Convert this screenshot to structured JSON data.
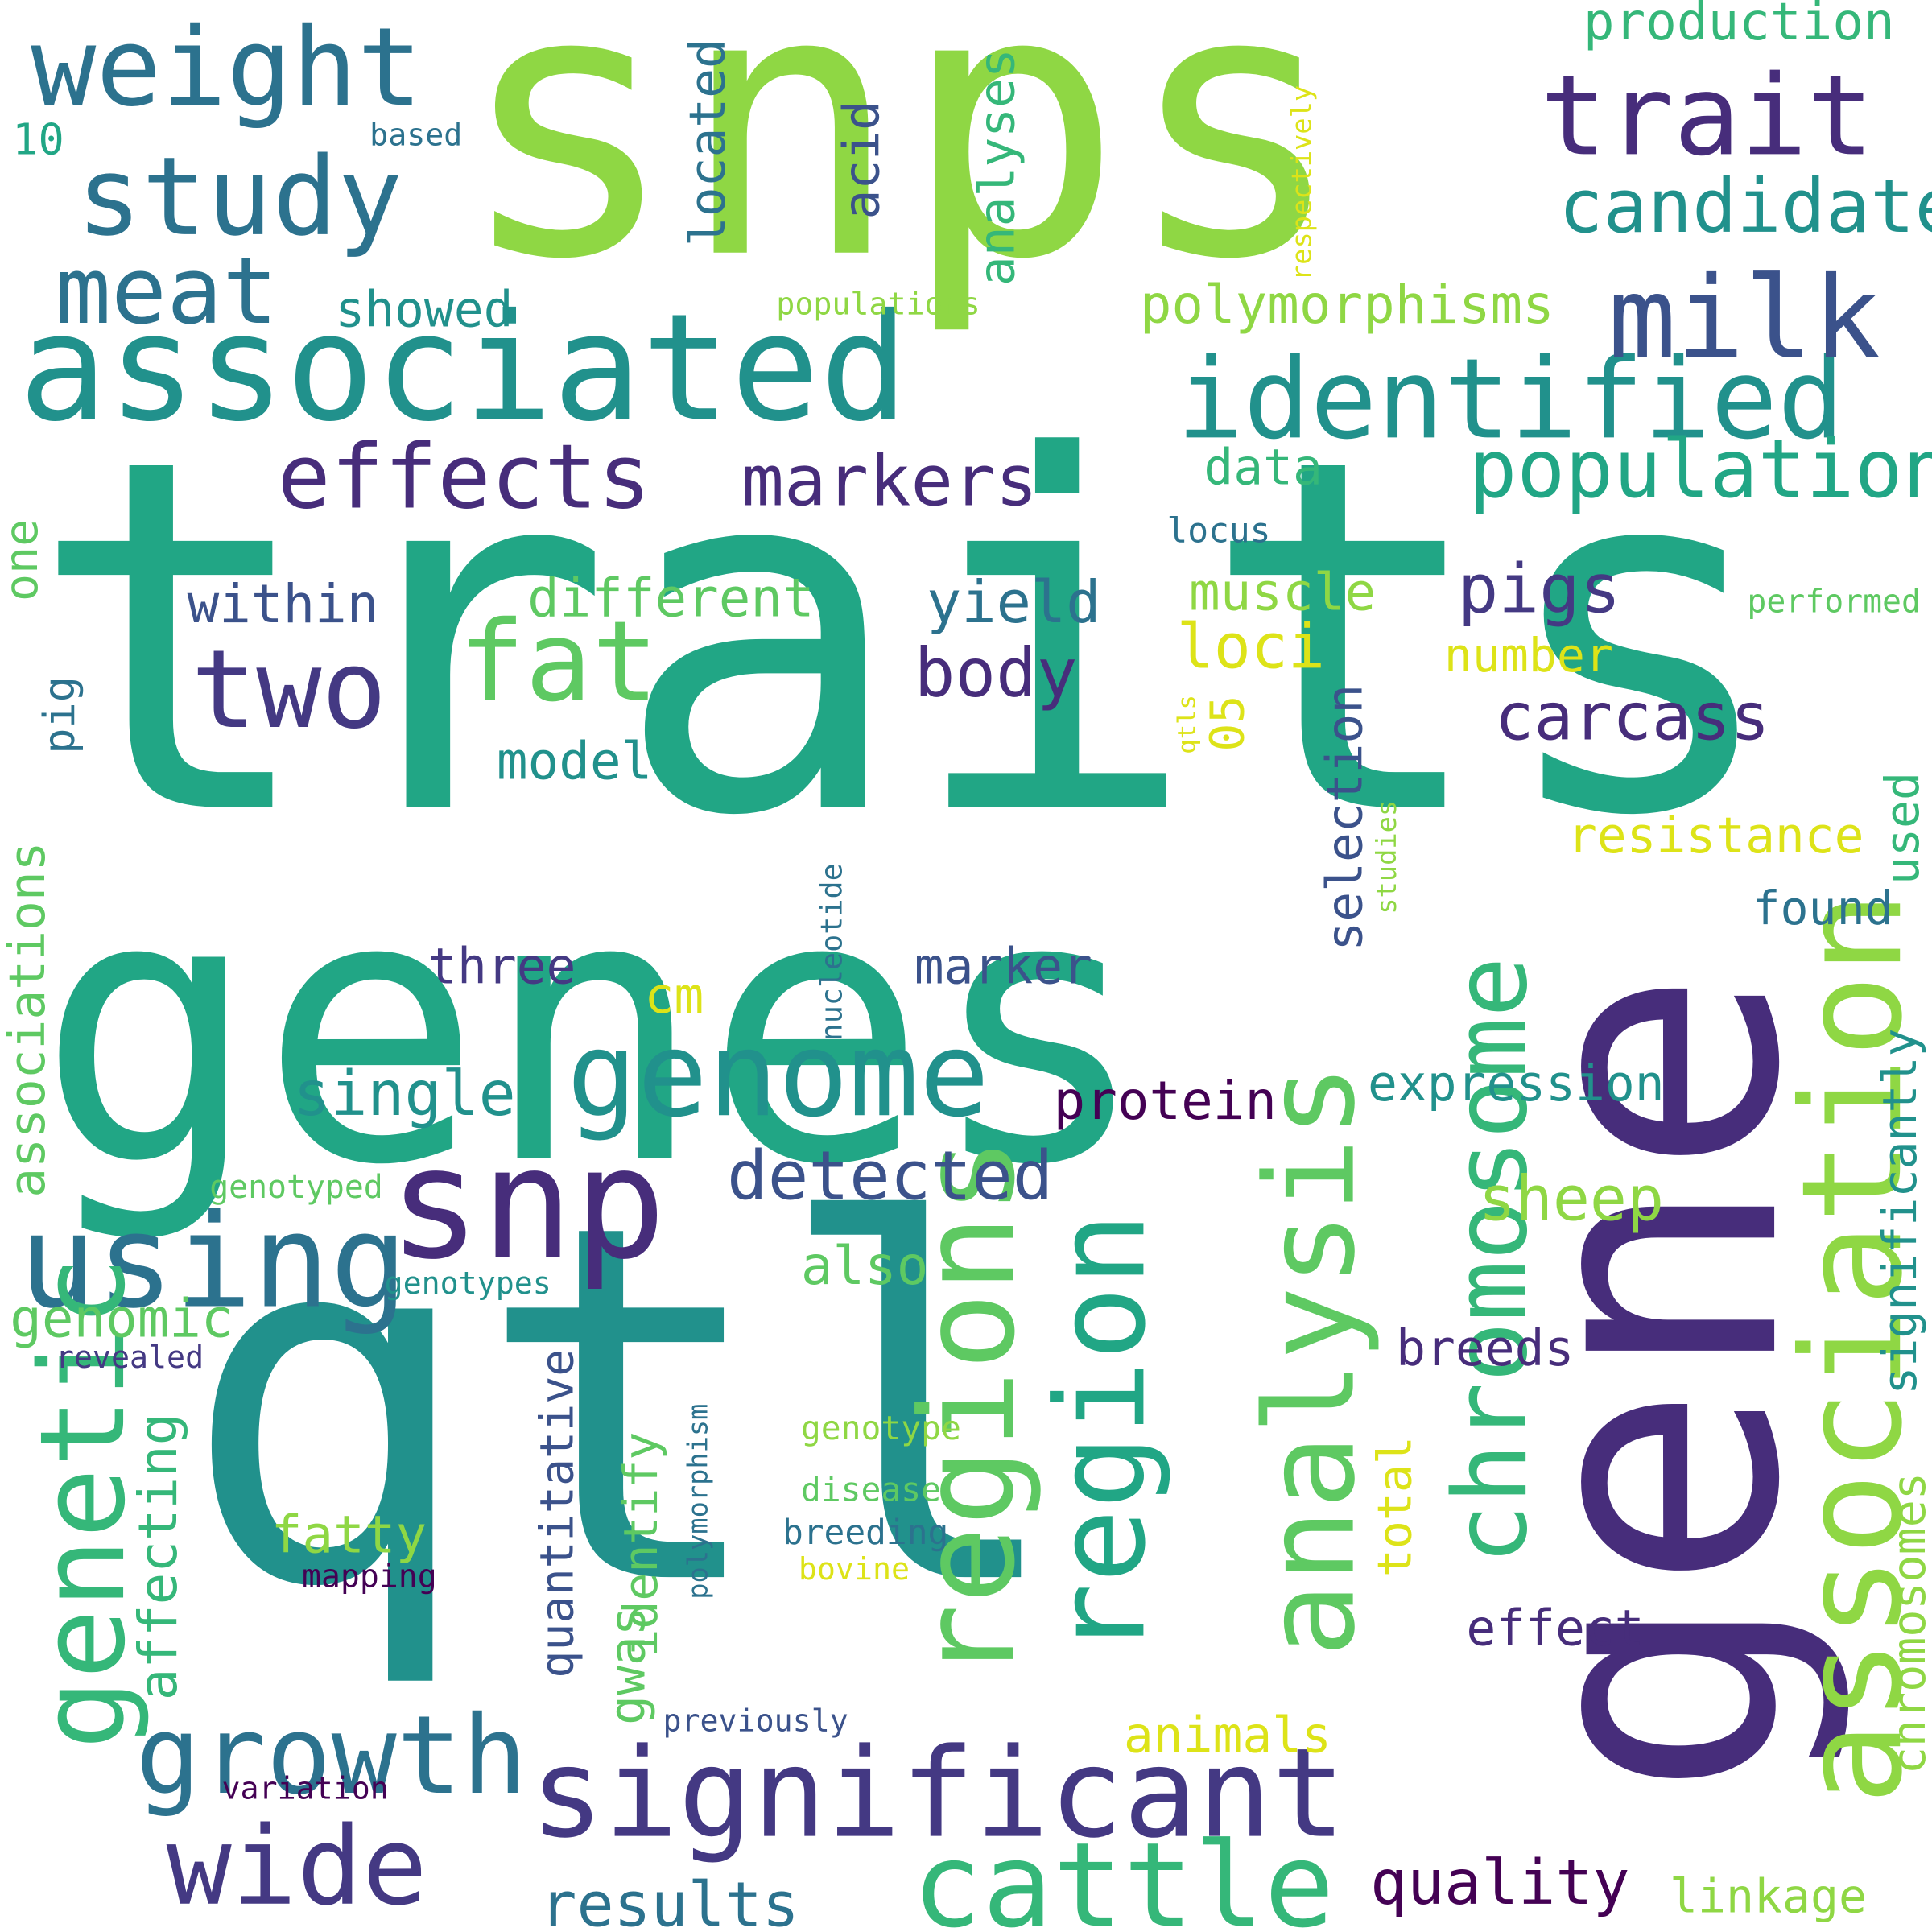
{
  "colors": {
    "background": "#ffffff",
    "yellow": "#dde318",
    "lime": "#8fd744",
    "green": "#5ec962",
    "mint": "#35b779",
    "teal": "#21a685",
    "cyan": "#21918c",
    "steel": "#2c728e",
    "blue": "#3b528b",
    "indigo": "#443983",
    "purple": "#472d7b",
    "deep": "#440154"
  },
  "words": [
    {
      "text": "traits",
      "color": "teal"
    },
    {
      "text": "qtl",
      "color": "cyan"
    },
    {
      "text": "snps",
      "color": "lime"
    },
    {
      "text": "genes",
      "color": "teal"
    },
    {
      "text": "gene",
      "color": "purple"
    },
    {
      "text": "associated",
      "color": "cyan"
    },
    {
      "text": "trait",
      "color": "purple"
    },
    {
      "text": "weight",
      "color": "steel"
    },
    {
      "text": "study",
      "color": "steel"
    },
    {
      "text": "identified",
      "color": "cyan"
    },
    {
      "text": "milk",
      "color": "blue"
    },
    {
      "text": "meat",
      "color": "steel"
    },
    {
      "text": "effects",
      "color": "purple"
    },
    {
      "text": "fat",
      "color": "green"
    },
    {
      "text": "two",
      "color": "indigo"
    },
    {
      "text": "genome",
      "color": "cyan"
    },
    {
      "text": "snp",
      "color": "purple"
    },
    {
      "text": "using",
      "color": "steel"
    },
    {
      "text": "significant",
      "color": "indigo"
    },
    {
      "text": "regions",
      "color": "green"
    },
    {
      "text": "region",
      "color": "teal"
    },
    {
      "text": "analysis",
      "color": "green"
    },
    {
      "text": "chromosome",
      "color": "mint"
    },
    {
      "text": "association",
      "color": "lime"
    },
    {
      "text": "genetic",
      "color": "mint"
    },
    {
      "text": "growth",
      "color": "steel"
    },
    {
      "text": "wide",
      "color": "indigo"
    },
    {
      "text": "cattle",
      "color": "mint"
    },
    {
      "text": "population",
      "color": "teal"
    },
    {
      "text": "candidate",
      "color": "cyan"
    },
    {
      "text": "production",
      "color": "mint"
    },
    {
      "text": "polymorphisms",
      "color": "lime"
    },
    {
      "text": "markers",
      "color": "purple"
    },
    {
      "text": "pigs",
      "color": "indigo"
    },
    {
      "text": "carcass",
      "color": "purple"
    },
    {
      "text": "loci",
      "color": "yellow"
    },
    {
      "text": "muscle",
      "color": "lime"
    },
    {
      "text": "number",
      "color": "yellow"
    },
    {
      "text": "yield",
      "color": "steel"
    },
    {
      "text": "body",
      "color": "purple"
    },
    {
      "text": "within",
      "color": "blue"
    },
    {
      "text": "different",
      "color": "green"
    },
    {
      "text": "located",
      "color": "steel"
    },
    {
      "text": "acid",
      "color": "blue"
    },
    {
      "text": "analyses",
      "color": "mint"
    },
    {
      "text": "showed",
      "color": "cyan"
    },
    {
      "text": "populations",
      "color": "lime"
    },
    {
      "text": "respectively",
      "color": "yellow"
    },
    {
      "text": "based",
      "color": "steel"
    },
    {
      "text": "10",
      "color": "teal"
    },
    {
      "text": "data",
      "color": "mint"
    },
    {
      "text": "locus",
      "color": "steel"
    },
    {
      "text": "performed",
      "color": "green"
    },
    {
      "text": "one",
      "color": "green"
    },
    {
      "text": "pig",
      "color": "steel"
    },
    {
      "text": "model",
      "color": "cyan"
    },
    {
      "text": "05",
      "color": "yellow"
    },
    {
      "text": "qtls",
      "color": "yellow"
    },
    {
      "text": "studies",
      "color": "lime"
    },
    {
      "text": "selection",
      "color": "blue"
    },
    {
      "text": "resistance",
      "color": "yellow"
    },
    {
      "text": "used",
      "color": "mint"
    },
    {
      "text": "found",
      "color": "steel"
    },
    {
      "text": "significantly",
      "color": "cyan"
    },
    {
      "text": "three",
      "color": "indigo"
    },
    {
      "text": "marker",
      "color": "blue"
    },
    {
      "text": "cm",
      "color": "yellow"
    },
    {
      "text": "nucleotide",
      "color": "steel"
    },
    {
      "text": "associations",
      "color": "green"
    },
    {
      "text": "single",
      "color": "cyan"
    },
    {
      "text": "protein",
      "color": "deep"
    },
    {
      "text": "expression",
      "color": "cyan"
    },
    {
      "text": "detected",
      "color": "blue"
    },
    {
      "text": "sheep",
      "color": "lime"
    },
    {
      "text": "also",
      "color": "green"
    },
    {
      "text": "genotyped",
      "color": "green"
    },
    {
      "text": "genotypes",
      "color": "cyan"
    },
    {
      "text": "genomic",
      "color": "green"
    },
    {
      "text": "revealed",
      "color": "indigo"
    },
    {
      "text": "quantitative",
      "color": "blue"
    },
    {
      "text": "identify",
      "color": "green"
    },
    {
      "text": "breeds",
      "color": "purple"
    },
    {
      "text": "affecting",
      "color": "mint"
    },
    {
      "text": "fatty",
      "color": "lime"
    },
    {
      "text": "polymorphism",
      "color": "steel"
    },
    {
      "text": "genotype",
      "color": "lime"
    },
    {
      "text": "disease",
      "color": "green"
    },
    {
      "text": "breeding",
      "color": "steel"
    },
    {
      "text": "mapping",
      "color": "deep"
    },
    {
      "text": "bovine",
      "color": "yellow"
    },
    {
      "text": "total",
      "color": "yellow"
    },
    {
      "text": "effect",
      "color": "purple"
    },
    {
      "text": "chromosomes",
      "color": "lime"
    },
    {
      "text": "gwas",
      "color": "green"
    },
    {
      "text": "animals",
      "color": "yellow"
    },
    {
      "text": "previously",
      "color": "blue"
    },
    {
      "text": "variation",
      "color": "deep"
    },
    {
      "text": "results",
      "color": "steel"
    },
    {
      "text": "quality",
      "color": "deep"
    },
    {
      "text": "linkage",
      "color": "lime"
    }
  ]
}
